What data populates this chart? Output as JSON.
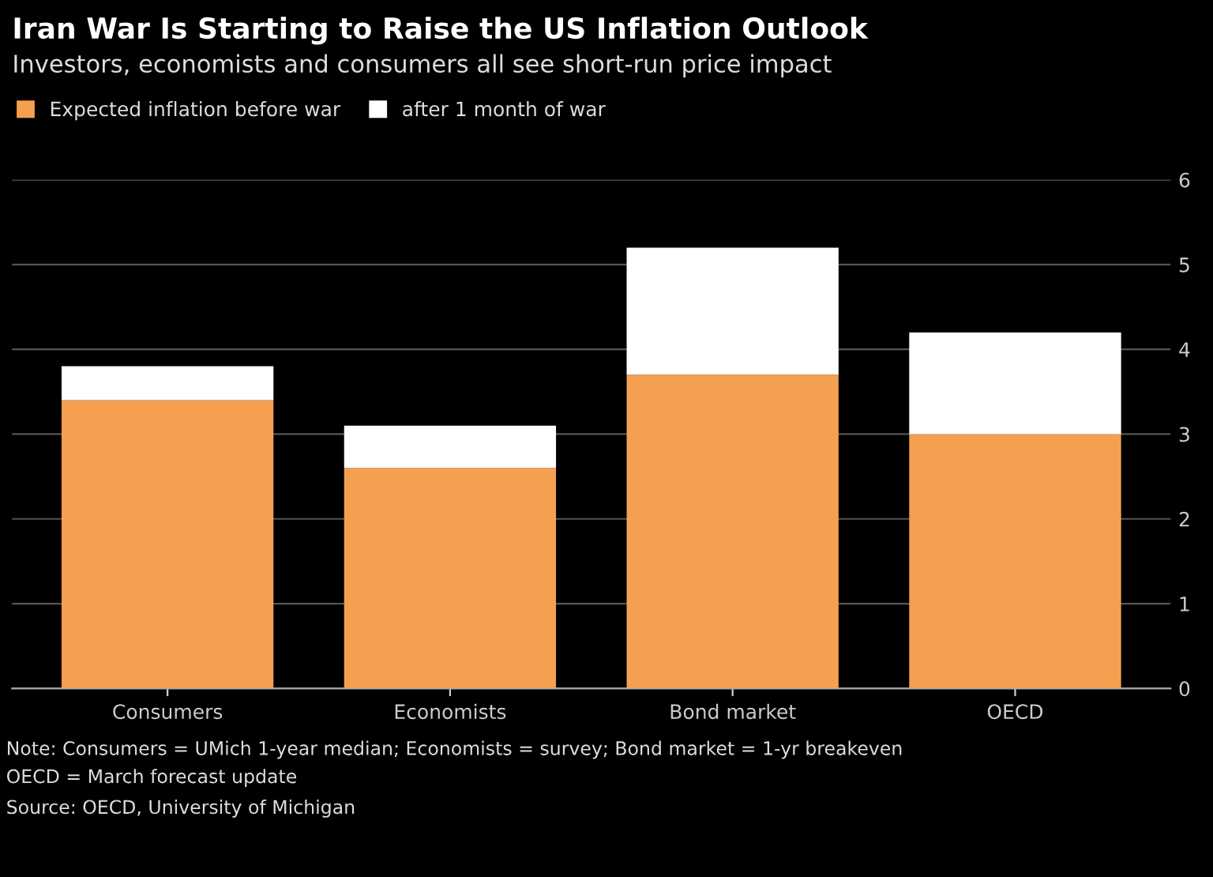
{
  "chart_data": {
    "type": "bar",
    "title": "Iran War Is Starting to Raise the US Inflation Outlook",
    "subtitle": "Investors, economists and consumers all see short-run price impact",
    "categories": [
      "Consumers",
      "Economists",
      "Bond market",
      "OECD"
    ],
    "series": [
      {
        "name": "Expected inflation before war",
        "color": "#f5a050",
        "values": [
          3.4,
          2.6,
          3.7,
          3.0
        ]
      },
      {
        "name": "after 1 month of war",
        "color": "#ffffff",
        "values": [
          0.4,
          0.5,
          1.5,
          1.2
        ]
      }
    ],
    "stacked": true,
    "ylim": [
      0,
      6
    ],
    "yticks": [
      0,
      1,
      2,
      3,
      4,
      5,
      6
    ],
    "grid": "y",
    "legend": "top left",
    "annotations": [
      "Note: Consumers = UMich 1-year median; Economists = survey; Bond market = 1-yr breakeven",
      "OECD = March forecast update",
      "Source: OECD, University of Michigan"
    ]
  }
}
